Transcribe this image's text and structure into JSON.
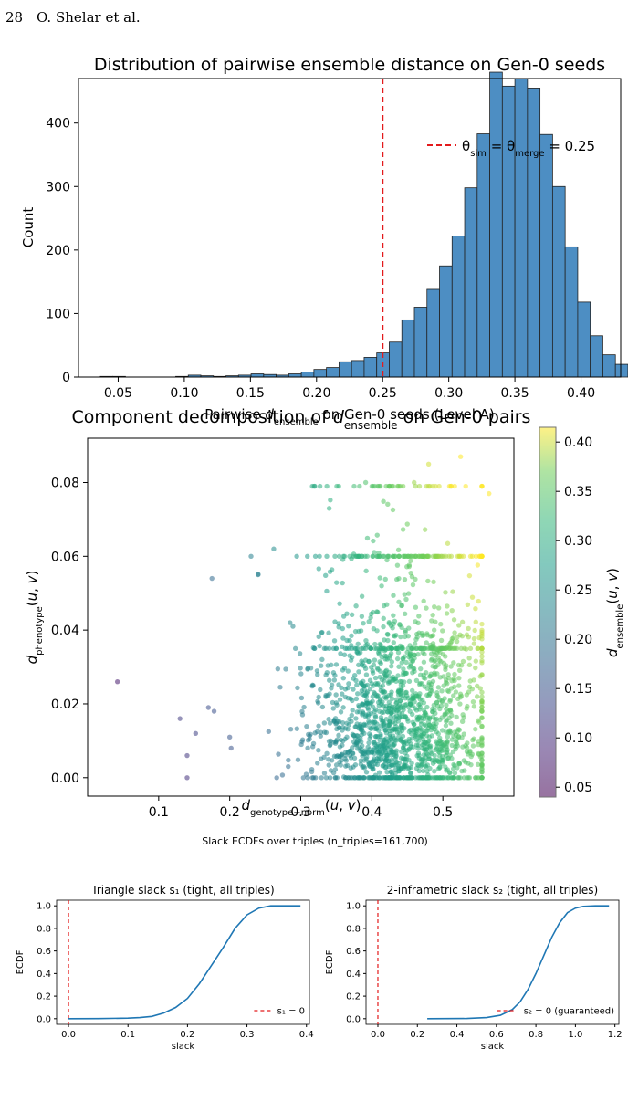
{
  "header": {
    "page_number": "28",
    "authors": "O. Shelar et al."
  },
  "chart_data": [
    {
      "type": "bar",
      "title": "Distribution of pairwise ensemble distance on Gen-0 seeds",
      "xlabel": "Pairwise d_ensemble on Gen-0 seeds (Level A)",
      "ylabel": "Count",
      "xlim": [
        0.02,
        0.43
      ],
      "ylim": [
        0,
        470
      ],
      "xticks": [
        "0.05",
        "0.10",
        "0.15",
        "0.20",
        "0.25",
        "0.30",
        "0.35",
        "0.40"
      ],
      "yticks": [
        "0",
        "100",
        "200",
        "300",
        "400"
      ],
      "bin_start": 0.0365,
      "bin_width": 0.0095,
      "counts": [
        1,
        1,
        0,
        0,
        0,
        0,
        1,
        3,
        2,
        1,
        2,
        3,
        5,
        4,
        3,
        5,
        8,
        12,
        15,
        24,
        26,
        31,
        38,
        55,
        90,
        110,
        138,
        175,
        222,
        298,
        383,
        480,
        458,
        470,
        455,
        382,
        300,
        205,
        118,
        65,
        35,
        20,
        10
      ],
      "bar_color": "#4d8ec3",
      "threshold": {
        "x": 0.25,
        "color": "#e31a1c",
        "legend": "θ_sim = θ_merge = 0.25"
      },
      "legend_position": "top-right",
      "grid": false
    },
    {
      "type": "scatter",
      "title": "Component decomposition of d_ensemble on Gen-0 pairs",
      "xlabel": "d_genotype−norm(u, v)",
      "ylabel": "d_phenotype(u, v)",
      "xlim": [
        0.0,
        0.6
      ],
      "ylim": [
        -0.005,
        0.092
      ],
      "xticks": [
        "0.1",
        "0.2",
        "0.3",
        "0.4",
        "0.5"
      ],
      "yticks": [
        "0.00",
        "0.02",
        "0.04",
        "0.06",
        "0.08"
      ],
      "colorbar": {
        "label": "d_ensemble(u, v)",
        "range": [
          0.04,
          0.415
        ],
        "ticks": [
          "0.05",
          "0.10",
          "0.15",
          "0.20",
          "0.25",
          "0.30",
          "0.35",
          "0.40"
        ],
        "colormap": "viridis"
      },
      "n_points_drawn": 1800,
      "sample_outliers": [
        {
          "x": 0.042,
          "y": 0.026
        },
        {
          "x": 0.13,
          "y": 0.016
        },
        {
          "x": 0.14,
          "y": 0.006
        },
        {
          "x": 0.14,
          "y": 0.0
        },
        {
          "x": 0.152,
          "y": 0.012
        },
        {
          "x": 0.175,
          "y": 0.054
        },
        {
          "x": 0.17,
          "y": 0.019
        },
        {
          "x": 0.178,
          "y": 0.018
        },
        {
          "x": 0.2,
          "y": 0.011
        },
        {
          "x": 0.202,
          "y": 0.008
        },
        {
          "x": 0.23,
          "y": 0.06
        },
        {
          "x": 0.262,
          "y": 0.062
        },
        {
          "x": 0.24,
          "y": 0.055
        },
        {
          "x": 0.34,
          "y": 0.073
        },
        {
          "x": 0.43,
          "y": 0.079
        },
        {
          "x": 0.48,
          "y": 0.085
        },
        {
          "x": 0.525,
          "y": 0.087
        },
        {
          "x": 0.565,
          "y": 0.077
        }
      ],
      "grid": false
    },
    {
      "type": "line",
      "suptitle": "Slack ECDFs over triples (n_triples=161,700)",
      "panels": [
        {
          "title": "Triangle slack s₁ (tight, all triples)",
          "xlabel": "slack",
          "ylabel": "ECDF",
          "xlim": [
            -0.02,
            0.405
          ],
          "ylim": [
            -0.05,
            1.05
          ],
          "xticks": [
            "0.0",
            "0.1",
            "0.2",
            "0.3",
            "0.4"
          ],
          "yticks": [
            "0.0",
            "0.2",
            "0.4",
            "0.6",
            "0.8",
            "1.0"
          ],
          "x": [
            0.0,
            0.05,
            0.1,
            0.12,
            0.14,
            0.16,
            0.18,
            0.2,
            0.22,
            0.24,
            0.26,
            0.28,
            0.3,
            0.32,
            0.34,
            0.36,
            0.39
          ],
          "y": [
            0.0,
            0.001,
            0.005,
            0.01,
            0.02,
            0.05,
            0.1,
            0.18,
            0.31,
            0.47,
            0.63,
            0.8,
            0.92,
            0.98,
            1.0,
            1.0,
            1.0
          ],
          "vline": {
            "x": 0.0,
            "legend": "s₁ = 0"
          },
          "legend_position": "lower-right"
        },
        {
          "title": "2-inframetric slack s₂ (tight, all triples)",
          "xlabel": "slack",
          "ylabel": "ECDF",
          "xlim": [
            -0.06,
            1.22
          ],
          "ylim": [
            -0.05,
            1.05
          ],
          "xticks": [
            "0.0",
            "0.2",
            "0.4",
            "0.6",
            "0.8",
            "1.0",
            "1.2"
          ],
          "yticks": [
            "0.0",
            "0.2",
            "0.4",
            "0.6",
            "0.8",
            "1.0"
          ],
          "x": [
            0.25,
            0.45,
            0.55,
            0.62,
            0.68,
            0.72,
            0.76,
            0.8,
            0.84,
            0.88,
            0.92,
            0.96,
            1.0,
            1.04,
            1.1,
            1.17
          ],
          "y": [
            0.0,
            0.002,
            0.01,
            0.03,
            0.08,
            0.15,
            0.26,
            0.4,
            0.56,
            0.72,
            0.85,
            0.94,
            0.98,
            0.995,
            1.0,
            1.0
          ],
          "vline": {
            "x": 0.0,
            "legend": "s₂ = 0 (guaranteed)"
          },
          "legend_position": "lower-right"
        }
      ]
    }
  ]
}
